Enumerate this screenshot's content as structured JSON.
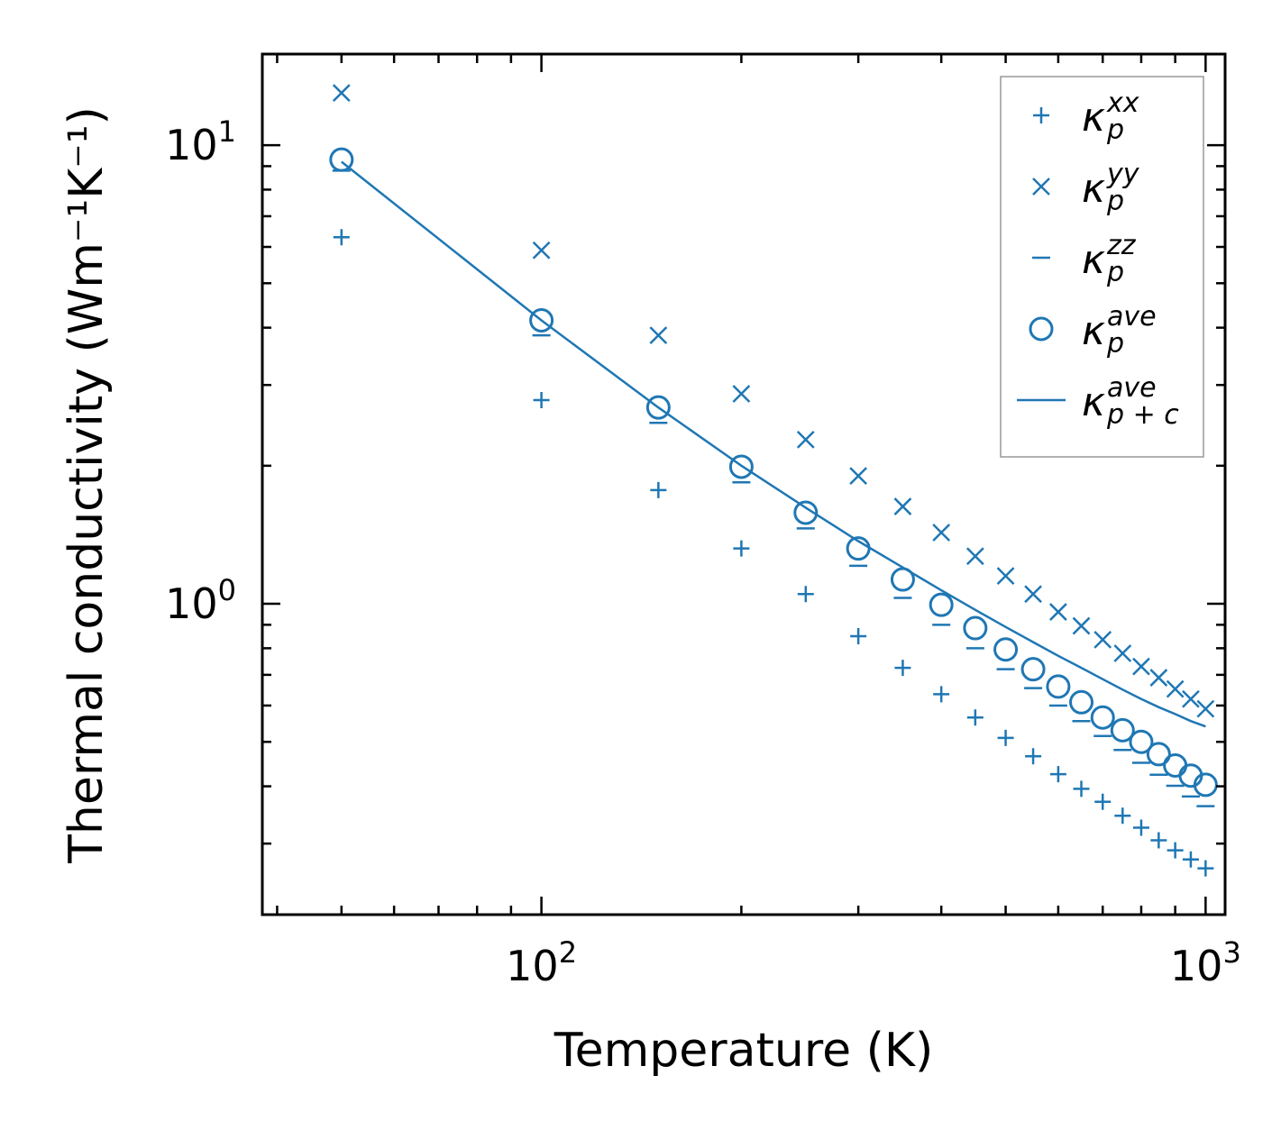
{
  "chart_data": {
    "type": "scatter",
    "xscale": "log",
    "yscale": "log",
    "xlabel": "Temperature (K)",
    "ylabel": "Thermal conductivity (Wm⁻¹K⁻¹)",
    "xlim": [
      38,
      1070
    ],
    "ylim": [
      0.21,
      15.8
    ],
    "x_ticks": [
      {
        "value": 100,
        "label": "10",
        "exp": "2"
      },
      {
        "value": 1000,
        "label": "10",
        "exp": "3"
      }
    ],
    "y_ticks": [
      {
        "value": 1,
        "label": "10",
        "exp": "0"
      },
      {
        "value": 10,
        "label": "10",
        "exp": "1"
      }
    ],
    "color": "#1f77b4",
    "legend_position": "upper right",
    "series": [
      {
        "name": "kxx",
        "marker": "plus",
        "legend": {
          "base": "κ",
          "sub": "p",
          "sup": "xx"
        },
        "x": [
          50,
          100,
          150,
          200,
          250,
          300,
          350,
          400,
          450,
          500,
          550,
          600,
          650,
          700,
          750,
          800,
          850,
          900,
          950,
          1000
        ],
        "y": [
          6.3,
          2.78,
          1.77,
          1.32,
          1.05,
          0.85,
          0.725,
          0.635,
          0.565,
          0.51,
          0.465,
          0.425,
          0.395,
          0.37,
          0.345,
          0.325,
          0.305,
          0.29,
          0.277,
          0.265
        ]
      },
      {
        "name": "kyy",
        "marker": "x",
        "legend": {
          "base": "κ",
          "sub": "p",
          "sup": "yy"
        },
        "x": [
          50,
          100,
          150,
          200,
          250,
          300,
          350,
          400,
          450,
          500,
          550,
          600,
          650,
          700,
          750,
          800,
          850,
          900,
          950,
          1000
        ],
        "y": [
          13.0,
          5.9,
          3.85,
          2.87,
          2.28,
          1.9,
          1.63,
          1.43,
          1.27,
          1.15,
          1.05,
          0.96,
          0.895,
          0.835,
          0.78,
          0.73,
          0.69,
          0.652,
          0.62,
          0.59
        ]
      },
      {
        "name": "kzz",
        "marker": "hline",
        "legend": {
          "base": "κ",
          "sub": "p",
          "sup": "zz"
        },
        "x": [
          50,
          100,
          150,
          200,
          250,
          300,
          350,
          400,
          450,
          500,
          550,
          600,
          650,
          700,
          750,
          800,
          850,
          900,
          950,
          1000
        ],
        "y": [
          8.8,
          3.85,
          2.48,
          1.84,
          1.46,
          1.21,
          1.03,
          0.9,
          0.8,
          0.72,
          0.655,
          0.6,
          0.555,
          0.515,
          0.48,
          0.45,
          0.424,
          0.401,
          0.38,
          0.362
        ]
      },
      {
        "name": "kave",
        "marker": "circle",
        "legend": {
          "base": "κ",
          "sub": "p",
          "sup": "ave"
        },
        "x": [
          50,
          100,
          150,
          200,
          250,
          300,
          350,
          400,
          450,
          500,
          550,
          600,
          650,
          700,
          750,
          800,
          850,
          900,
          950,
          1000
        ],
        "y": [
          9.3,
          4.15,
          2.68,
          1.99,
          1.58,
          1.32,
          1.13,
          0.995,
          0.885,
          0.795,
          0.72,
          0.66,
          0.61,
          0.565,
          0.53,
          0.5,
          0.47,
          0.444,
          0.422,
          0.403
        ]
      },
      {
        "name": "kave_pc",
        "marker": "line",
        "legend": {
          "base": "κ",
          "sub": "p + c",
          "sup": "ave"
        },
        "x": [
          50,
          100,
          150,
          200,
          250,
          300,
          350,
          400,
          450,
          500,
          550,
          600,
          650,
          700,
          750,
          800,
          850,
          900,
          950,
          1000
        ],
        "y": [
          9.2,
          4.15,
          2.68,
          2.0,
          1.62,
          1.37,
          1.2,
          1.07,
          0.97,
          0.89,
          0.825,
          0.77,
          0.725,
          0.685,
          0.65,
          0.62,
          0.595,
          0.575,
          0.555,
          0.54
        ]
      }
    ]
  }
}
